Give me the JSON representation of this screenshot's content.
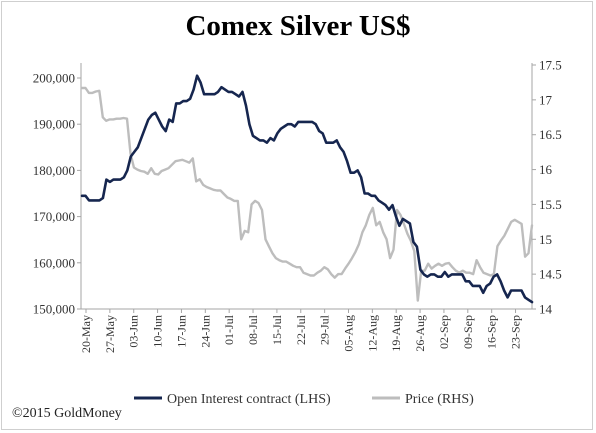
{
  "chart_data": {
    "type": "line",
    "title": "Comex Silver US$",
    "xlabel": "",
    "ylabel": "",
    "x_ticks": [
      "20-May",
      "27-May",
      "03-Jun",
      "10-Jun",
      "17-Jun",
      "24-Jun",
      "01-Jul",
      "08-Jul",
      "15-Jul",
      "22-Jul",
      "29-Jul",
      "05-Aug",
      "12-Aug",
      "19-Aug",
      "26-Aug",
      "02-Sep",
      "09-Sep",
      "16-Sep",
      "23-Sep"
    ],
    "y_left_ticks": [
      "150,000",
      "160,000",
      "170,000",
      "180,000",
      "190,000",
      "200,000"
    ],
    "y_left_lim": [
      150000,
      200000
    ],
    "y_right_ticks": [
      "14",
      "14.5",
      "15",
      "15.5",
      "16",
      "16.5",
      "17",
      "17.5"
    ],
    "y_right_lim": [
      14,
      17.5
    ],
    "legend_position": "bottom",
    "grid": false,
    "series": [
      {
        "name": "Open Interest contract (LHS)",
        "axis": "left",
        "color": "#16264f",
        "values": [
          174500,
          174500,
          173500,
          173500,
          173500,
          173500,
          174000,
          178000,
          177500,
          178000,
          178000,
          178000,
          178500,
          180000,
          183000,
          184000,
          185000,
          187000,
          189000,
          191000,
          192000,
          192500,
          191000,
          189500,
          188500,
          191000,
          190500,
          194500,
          194500,
          195000,
          195000,
          195500,
          197500,
          200500,
          199000,
          196500,
          196500,
          196500,
          196500,
          197000,
          198000,
          197500,
          197000,
          197000,
          196500,
          196000,
          197000,
          194000,
          190000,
          187500,
          187000,
          186500,
          186500,
          186000,
          187000,
          186500,
          188000,
          189000,
          189500,
          190000,
          190000,
          189500,
          190500,
          190500,
          190500,
          190500,
          190500,
          190000,
          188500,
          188000,
          186000,
          186000,
          186000,
          186500,
          185000,
          184000,
          182000,
          179500,
          179500,
          180000,
          178500,
          175000,
          175000,
          174500,
          174500,
          173500,
          173000,
          172500,
          171500,
          172500,
          170000,
          168000,
          169500,
          169000,
          168500,
          164500,
          163500,
          158500,
          157500,
          157000,
          157500,
          157500,
          157000,
          157000,
          158000,
          157000,
          157500,
          157500,
          157500,
          157500,
          156000,
          156000,
          155000,
          155000,
          155000,
          153500,
          155000,
          155500,
          157000,
          157500,
          156000,
          154000,
          152500,
          154000,
          154000,
          154000,
          154000,
          152500,
          152000,
          151500
        ]
      },
      {
        "name": "Price (RHS)",
        "axis": "right",
        "color": "#bdbdbd",
        "values": [
          17.17,
          17.17,
          17.1,
          17.1,
          17.12,
          17.13,
          16.75,
          16.7,
          16.72,
          16.72,
          16.73,
          16.73,
          16.74,
          16.73,
          16.23,
          16.03,
          16.0,
          15.98,
          15.97,
          15.94,
          16.02,
          15.94,
          15.93,
          15.98,
          16.0,
          16.02,
          16.07,
          16.12,
          16.13,
          16.14,
          16.12,
          16.1,
          16.16,
          15.83,
          15.86,
          15.78,
          15.75,
          15.73,
          15.71,
          15.7,
          15.7,
          15.65,
          15.6,
          15.58,
          15.55,
          15.55,
          15.0,
          15.12,
          15.1,
          15.5,
          15.55,
          15.52,
          15.42,
          15.0,
          14.9,
          14.8,
          14.73,
          14.7,
          14.68,
          14.68,
          14.65,
          14.62,
          14.6,
          14.6,
          14.52,
          14.5,
          14.48,
          14.48,
          14.52,
          14.55,
          14.6,
          14.57,
          14.5,
          14.45,
          14.5,
          14.5,
          14.58,
          14.65,
          14.73,
          14.82,
          14.93,
          15.1,
          15.2,
          15.35,
          15.45,
          15.2,
          15.25,
          15.1,
          15.0,
          14.73,
          14.85,
          15.42,
          15.35,
          15.22,
          15.08,
          14.98,
          14.83,
          14.12,
          14.55,
          14.55,
          14.65,
          14.58,
          14.62,
          14.65,
          14.62,
          14.65,
          14.66,
          14.6,
          14.55,
          14.52,
          14.55,
          14.52,
          14.52,
          14.5,
          14.7,
          14.6,
          14.52,
          14.5,
          14.48,
          14.5,
          14.9,
          14.98,
          15.05,
          15.15,
          15.25,
          15.28,
          15.25,
          15.22,
          14.75,
          14.8,
          15.2
        ]
      }
    ]
  },
  "footer": {
    "copyright": "©2015 GoldMoney"
  },
  "colors": {
    "open_interest": "#16264f",
    "price": "#bdbdbd",
    "axis": "#a6a6a6"
  }
}
